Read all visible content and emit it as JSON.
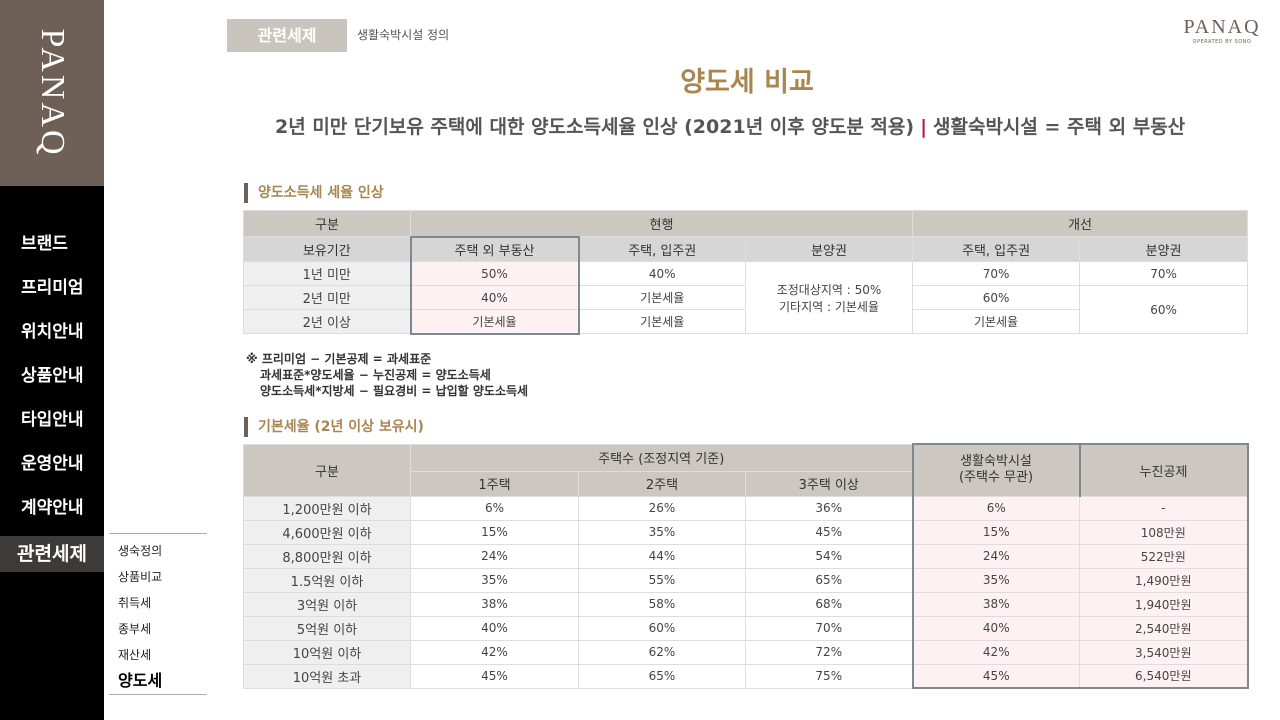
{
  "sidebar": {
    "logo": "PANAQ",
    "items": [
      "브랜드",
      "프리미엄",
      "위치안내",
      "상품안내",
      "타입안내",
      "운영안내",
      "계약안내",
      "관련세제"
    ],
    "sub_items": [
      "생숙정의",
      "상품비교",
      "취득세",
      "종부세",
      "재산세",
      "양도세"
    ]
  },
  "header": {
    "breadcrumb": "관련세제",
    "breadcrumb_sub": "생활숙박시설 정의",
    "brand": "PANAQ",
    "brand_sub": "OPERATED BY SONO"
  },
  "title": "양도세 비교",
  "subtitle": {
    "left": "2년 미만 단기보유 주택에 대한 양도소득세율 인상 (2021년 이후 양도분 적용)",
    "sep": "|",
    "right": "생활숙박시설 = 주택 외 부동산"
  },
  "table1": {
    "section": "양도소득세 세율 인상",
    "h_gubun": "구분",
    "h_current": "현행",
    "h_improve": "개선",
    "h_period": "보유기간",
    "cols": [
      "주택 외 부동산",
      "주택, 입주권",
      "분양권",
      "주택, 입주권",
      "분양권"
    ],
    "rows": [
      {
        "label": "1년 미만",
        "c1": "50%",
        "c2": "40%",
        "c4": "70%",
        "c5": "70%"
      },
      {
        "label": "2년 미만",
        "c1": "40%",
        "c2": "기본세율",
        "c4": "60%"
      },
      {
        "label": "2년 이상",
        "c1": "기본세율",
        "c2": "기본세율",
        "c4": "기본세율"
      }
    ],
    "merged_c3_line1": "조정대상지역 : 50%",
    "merged_c3_line2": "기타지역 : 기본세율",
    "merged_c5": "60%"
  },
  "notes": [
    "※ 프리미엄 − 기본공제 = 과세표준",
    "과세표준*양도세율 − 누진공제 = 양도소득세",
    "양도소득세*지방세 − 필요경비 = 납입할 양도소득세"
  ],
  "table2": {
    "section": "기본세율 (2년 이상 보유시)",
    "h_gubun": "구분",
    "h_count": "주택수 (조정지역 기준)",
    "h_cols": [
      "1주택",
      "2주택",
      "3주택 이상"
    ],
    "h_lodging1": "생활숙박시설",
    "h_lodging2": "(주택수 무관)",
    "h_deduct": "누진공제",
    "rows": [
      [
        "1,200만원 이하",
        "6%",
        "26%",
        "36%",
        "6%",
        "-"
      ],
      [
        "4,600만원 이하",
        "15%",
        "35%",
        "45%",
        "15%",
        "108만원"
      ],
      [
        "8,800만원 이하",
        "24%",
        "44%",
        "54%",
        "24%",
        "522만원"
      ],
      [
        "1.5억원 이하",
        "35%",
        "55%",
        "65%",
        "35%",
        "1,490만원"
      ],
      [
        "3억원 이하",
        "38%",
        "58%",
        "68%",
        "38%",
        "1,940만원"
      ],
      [
        "5억원 이하",
        "40%",
        "60%",
        "70%",
        "40%",
        "2,540만원"
      ],
      [
        "10억원 이하",
        "42%",
        "62%",
        "72%",
        "42%",
        "3,540만원"
      ],
      [
        "10억원 초과",
        "45%",
        "65%",
        "75%",
        "45%",
        "6,540만원"
      ]
    ]
  }
}
